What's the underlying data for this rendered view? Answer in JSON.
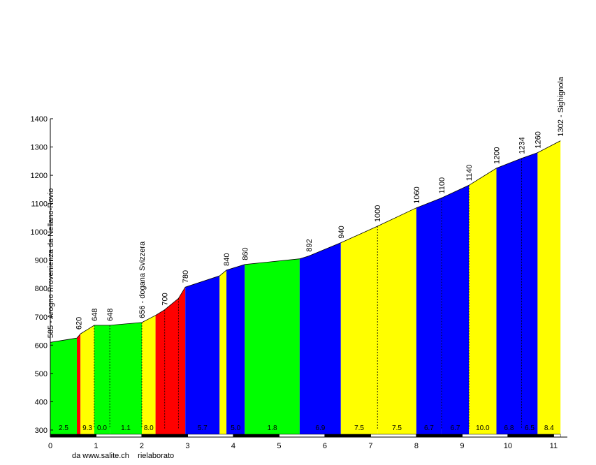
{
  "credit": "da www.salite.ch    rielaborato",
  "colors": {
    "green": "#00ff00",
    "yellow": "#ffff00",
    "red": "#ff0000",
    "blue": "#0000ff"
  },
  "chart_data": {
    "type": "area",
    "title": "",
    "xlabel": "",
    "ylabel": "",
    "xlim": [
      0,
      11.3
    ],
    "ylim": [
      285,
      1400
    ],
    "xticks": [
      0,
      1,
      2,
      3,
      4,
      5,
      6,
      7,
      8,
      9,
      10,
      11
    ],
    "yticks": [
      300,
      400,
      500,
      600,
      700,
      800,
      900,
      1000,
      1100,
      1200,
      1300,
      1400
    ],
    "grid": false,
    "profile": [
      {
        "x": 0.0,
        "y": 610
      },
      {
        "x": 0.58,
        "y": 625
      },
      {
        "x": 0.66,
        "y": 640
      },
      {
        "x": 0.96,
        "y": 670
      },
      {
        "x": 1.3,
        "y": 670
      },
      {
        "x": 2.0,
        "y": 680
      },
      {
        "x": 2.3,
        "y": 705
      },
      {
        "x": 2.5,
        "y": 725
      },
      {
        "x": 2.8,
        "y": 765
      },
      {
        "x": 2.95,
        "y": 805
      },
      {
        "x": 3.7,
        "y": 845
      },
      {
        "x": 3.85,
        "y": 865
      },
      {
        "x": 4.25,
        "y": 885
      },
      {
        "x": 5.45,
        "y": 905
      },
      {
        "x": 5.65,
        "y": 915
      },
      {
        "x": 6.35,
        "y": 962
      },
      {
        "x": 7.15,
        "y": 1020
      },
      {
        "x": 8.0,
        "y": 1085
      },
      {
        "x": 8.55,
        "y": 1120
      },
      {
        "x": 9.15,
        "y": 1165
      },
      {
        "x": 9.75,
        "y": 1225
      },
      {
        "x": 10.3,
        "y": 1260
      },
      {
        "x": 10.65,
        "y": 1280
      },
      {
        "x": 11.15,
        "y": 1322
      }
    ],
    "segments": [
      {
        "x0": 0.0,
        "x1": 0.58,
        "color": "green",
        "grade": "2.5"
      },
      {
        "x0": 0.58,
        "x1": 0.66,
        "color": "red",
        "grade": ""
      },
      {
        "x0": 0.66,
        "x1": 0.96,
        "color": "yellow",
        "grade": "9.3"
      },
      {
        "x0": 0.96,
        "x1": 1.3,
        "color": "green",
        "grade": "0.0"
      },
      {
        "x0": 1.3,
        "x1": 2.0,
        "color": "green",
        "grade": "1.1"
      },
      {
        "x0": 2.0,
        "x1": 2.3,
        "color": "yellow",
        "grade": "8.0"
      },
      {
        "x0": 2.3,
        "x1": 2.95,
        "color": "red",
        "grade": ""
      },
      {
        "x0": 2.95,
        "x1": 3.7,
        "color": "blue",
        "grade": "5.7"
      },
      {
        "x0": 3.7,
        "x1": 3.85,
        "color": "yellow",
        "grade": ""
      },
      {
        "x0": 3.85,
        "x1": 4.25,
        "color": "blue",
        "grade": "5.0"
      },
      {
        "x0": 4.25,
        "x1": 5.45,
        "color": "green",
        "grade": "1.8"
      },
      {
        "x0": 5.45,
        "x1": 6.35,
        "color": "blue",
        "grade": "6.9"
      },
      {
        "x0": 6.35,
        "x1": 7.15,
        "color": "yellow",
        "grade": "7.5"
      },
      {
        "x0": 7.15,
        "x1": 8.0,
        "color": "yellow",
        "grade": "7.5"
      },
      {
        "x0": 8.0,
        "x1": 8.55,
        "color": "blue",
        "grade": "6.7"
      },
      {
        "x0": 8.55,
        "x1": 9.15,
        "color": "blue",
        "grade": "6.7"
      },
      {
        "x0": 9.15,
        "x1": 9.75,
        "color": "yellow",
        "grade": "10.0"
      },
      {
        "x0": 9.75,
        "x1": 10.3,
        "color": "blue",
        "grade": "6.8"
      },
      {
        "x0": 10.3,
        "x1": 10.65,
        "color": "blue",
        "grade": "6.5"
      },
      {
        "x0": 10.65,
        "x1": 11.15,
        "color": "yellow",
        "grade": "8.4"
      }
    ],
    "dashed_dividers": [
      0.96,
      1.3,
      2.0,
      2.5,
      2.8,
      7.15,
      8.55,
      9.15,
      10.3
    ],
    "altitude_labels": [
      {
        "x": 0.0,
        "y": 610,
        "text": "585 - Arogno   Provenienza da Nellano-Rovio"
      },
      {
        "x": 0.62,
        "y": 640,
        "text": "620"
      },
      {
        "x": 0.96,
        "y": 670,
        "text": "648"
      },
      {
        "x": 1.3,
        "y": 670,
        "text": "648"
      },
      {
        "x": 2.0,
        "y": 680,
        "text": "656 - dogana Svizzera"
      },
      {
        "x": 2.5,
        "y": 725,
        "text": "700"
      },
      {
        "x": 2.95,
        "y": 805,
        "text": "780"
      },
      {
        "x": 3.85,
        "y": 865,
        "text": "840"
      },
      {
        "x": 4.25,
        "y": 885,
        "text": "860"
      },
      {
        "x": 5.65,
        "y": 915,
        "text": "892"
      },
      {
        "x": 6.35,
        "y": 962,
        "text": "940"
      },
      {
        "x": 7.15,
        "y": 1020,
        "text": "1000"
      },
      {
        "x": 8.0,
        "y": 1085,
        "text": "1060"
      },
      {
        "x": 8.55,
        "y": 1120,
        "text": "1100"
      },
      {
        "x": 9.15,
        "y": 1165,
        "text": "1140"
      },
      {
        "x": 9.75,
        "y": 1225,
        "text": "1200"
      },
      {
        "x": 10.3,
        "y": 1260,
        "text": "1234"
      },
      {
        "x": 10.65,
        "y": 1280,
        "text": "1260"
      },
      {
        "x": 11.15,
        "y": 1322,
        "text": "1302 - Sighignola"
      }
    ],
    "km_bar": [
      0,
      1,
      2,
      3,
      4,
      5,
      6,
      7,
      8,
      9,
      10,
      11,
      11.15
    ]
  }
}
